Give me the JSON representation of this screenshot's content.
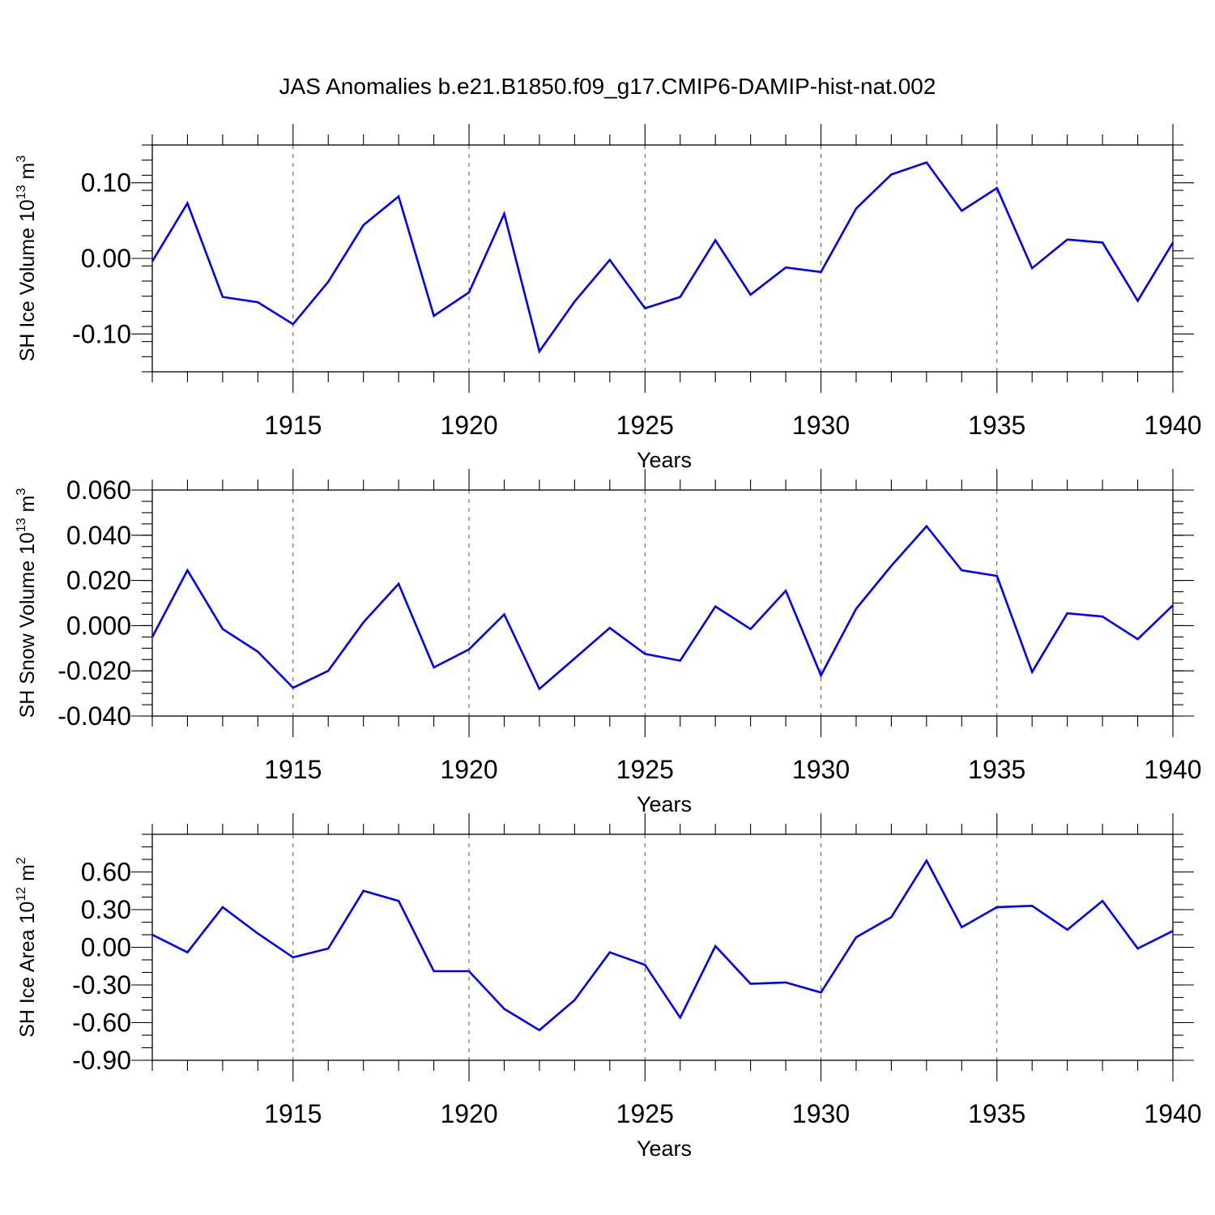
{
  "title": "JAS Anomalies b.e21.B1850.f09_g17.CMIP6-DAMIP-hist-nat.002",
  "chart_data": [
    {
      "type": "line",
      "id": "ice-volume",
      "ylabel_main": "SH Ice Volume 10",
      "ylabel_exp": "13",
      "ylabel_unit": " m",
      "ylabel_unit_exp": "3",
      "xlabel": "Years",
      "xlim": [
        1911,
        1940
      ],
      "ylim": [
        -0.15,
        0.15
      ],
      "xticks": [
        1915,
        1920,
        1925,
        1930,
        1935,
        1940
      ],
      "xtick_labels": [
        "1915",
        "1920",
        "1925",
        "1930",
        "1935",
        "1940"
      ],
      "yticks": [
        -0.1,
        0.0,
        0.1
      ],
      "ytick_labels": [
        "-0.10",
        "0.00",
        "0.10"
      ],
      "yminor_step": 0.02,
      "color": "#0000ff",
      "x": [
        1911,
        1912,
        1913,
        1914,
        1915,
        1916,
        1917,
        1918,
        1919,
        1920,
        1921,
        1922,
        1923,
        1924,
        1925,
        1926,
        1927,
        1928,
        1929,
        1930,
        1931,
        1932,
        1933,
        1934,
        1935,
        1936,
        1937,
        1938,
        1939,
        1940
      ],
      "y": [
        -0.004,
        0.073,
        -0.051,
        -0.058,
        -0.087,
        -0.031,
        0.044,
        0.082,
        -0.076,
        -0.045,
        0.059,
        -0.123,
        -0.057,
        -0.002,
        -0.066,
        -0.051,
        0.024,
        -0.048,
        -0.012,
        -0.018,
        0.066,
        0.111,
        0.127,
        0.063,
        0.093,
        -0.013,
        0.025,
        0.021,
        -0.056,
        0.021
      ]
    },
    {
      "type": "line",
      "id": "snow-volume",
      "ylabel_main": "SH Snow Volume 10",
      "ylabel_exp": "13",
      "ylabel_unit": " m",
      "ylabel_unit_exp": "3",
      "xlabel": "Years",
      "xlim": [
        1911,
        1940
      ],
      "ylim": [
        -0.04,
        0.06
      ],
      "xticks": [
        1915,
        1920,
        1925,
        1930,
        1935,
        1940
      ],
      "xtick_labels": [
        "1915",
        "1920",
        "1925",
        "1930",
        "1935",
        "1940"
      ],
      "yticks": [
        -0.04,
        -0.02,
        0.0,
        0.02,
        0.04,
        0.06
      ],
      "ytick_labels": [
        "-0.040",
        "-0.020",
        "0.000",
        "0.020",
        "0.040",
        "0.060"
      ],
      "yminor_step": 0.005,
      "color": "#0000ff",
      "x": [
        1911,
        1912,
        1913,
        1914,
        1915,
        1916,
        1917,
        1918,
        1919,
        1920,
        1921,
        1922,
        1923,
        1924,
        1925,
        1926,
        1927,
        1928,
        1929,
        1930,
        1931,
        1932,
        1933,
        1934,
        1935,
        1936,
        1937,
        1938,
        1939,
        1940
      ],
      "y": [
        -0.005,
        0.0245,
        -0.0015,
        -0.0115,
        -0.0275,
        -0.02,
        0.0015,
        0.0185,
        -0.0185,
        -0.0105,
        0.005,
        -0.028,
        -0.0145,
        -0.001,
        -0.0125,
        -0.0155,
        0.0085,
        -0.0015,
        0.0155,
        -0.022,
        0.0075,
        0.0265,
        0.044,
        0.0245,
        0.022,
        -0.0205,
        0.0055,
        0.004,
        -0.006,
        0.009
      ]
    },
    {
      "type": "line",
      "id": "ice-area",
      "ylabel_main": "SH Ice Area 10",
      "ylabel_exp": "12",
      "ylabel_unit": " m",
      "ylabel_unit_exp": "2",
      "xlabel": "Years",
      "xlim": [
        1911,
        1940
      ],
      "ylim": [
        -0.9,
        0.9
      ],
      "xticks": [
        1915,
        1920,
        1925,
        1930,
        1935,
        1940
      ],
      "xtick_labels": [
        "1915",
        "1920",
        "1925",
        "1930",
        "1935",
        "1940"
      ],
      "yticks": [
        -0.9,
        -0.6,
        -0.3,
        0.0,
        0.3,
        0.6
      ],
      "ytick_labels": [
        "-0.90",
        "-0.60",
        "-0.30",
        "0.00",
        "0.30",
        "0.60"
      ],
      "yminor_step": 0.1,
      "color": "#0000ff",
      "x": [
        1911,
        1912,
        1913,
        1914,
        1915,
        1916,
        1917,
        1918,
        1919,
        1920,
        1921,
        1922,
        1923,
        1924,
        1925,
        1926,
        1927,
        1928,
        1929,
        1930,
        1931,
        1932,
        1933,
        1934,
        1935,
        1936,
        1937,
        1938,
        1939,
        1940
      ],
      "y": [
        0.1,
        -0.04,
        0.32,
        0.11,
        -0.08,
        -0.01,
        0.45,
        0.37,
        -0.19,
        -0.19,
        -0.49,
        -0.66,
        -0.42,
        -0.04,
        -0.14,
        -0.56,
        0.01,
        -0.29,
        -0.28,
        -0.36,
        0.08,
        0.24,
        0.69,
        0.16,
        0.32,
        0.33,
        0.14,
        0.37,
        -0.01,
        0.13
      ]
    }
  ]
}
